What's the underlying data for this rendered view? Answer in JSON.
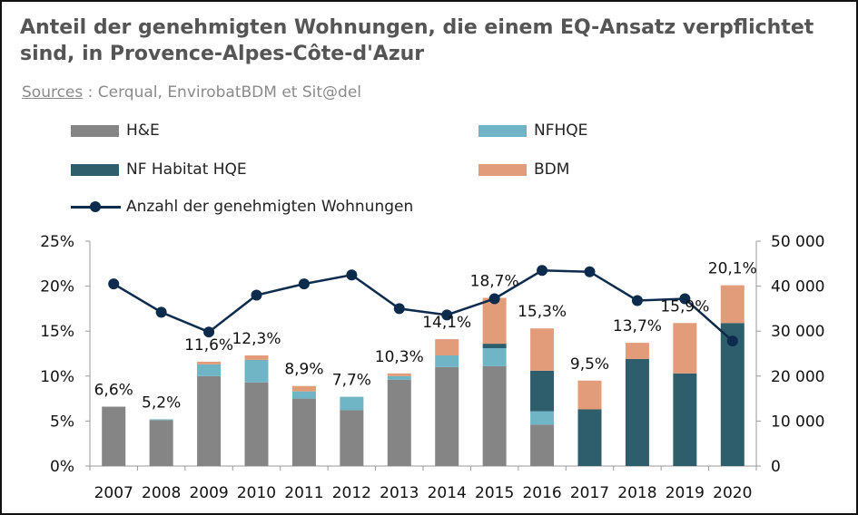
{
  "chart_data": {
    "type": "bar",
    "title": "Anteil der genehmigten Wohnungen, die einem EQ-Ansatz verpflichtet sind, in Provence-Alpes-Côte-d'Azur",
    "source_label": "Sources",
    "source_text": " : Cerqual, EnvirobatBDM et Sit@del",
    "categories": [
      "2007",
      "2008",
      "2009",
      "2010",
      "2011",
      "2012",
      "2013",
      "2014",
      "2015",
      "2016",
      "2017",
      "2018",
      "2019",
      "2020"
    ],
    "stacked": true,
    "y_left": {
      "ylim": [
        0,
        25
      ],
      "ticks": [
        "0%",
        "5%",
        "10%",
        "15%",
        "20%",
        "25%"
      ],
      "tick_values": [
        0,
        5,
        10,
        15,
        20,
        25
      ]
    },
    "y_right": {
      "ylim": [
        0,
        50000
      ],
      "ticks": [
        "0",
        "10 000",
        "20 000",
        "30 000",
        "40 000",
        "50 000"
      ],
      "tick_values": [
        0,
        10000,
        20000,
        30000,
        40000,
        50000
      ]
    },
    "series": [
      {
        "name": "H&E",
        "color": "#858585",
        "values": [
          6.6,
          5.1,
          10.0,
          9.3,
          7.5,
          6.2,
          9.6,
          11.0,
          11.1,
          4.6,
          0,
          0,
          0,
          0
        ]
      },
      {
        "name": "NFHQE",
        "color": "#6fb5c6",
        "values": [
          0,
          0.1,
          1.3,
          2.5,
          0.8,
          1.5,
          0.4,
          1.3,
          2.0,
          1.5,
          0,
          0,
          0,
          0
        ]
      },
      {
        "name": "NF Habitat HQE",
        "color": "#2e5d6b",
        "values": [
          0,
          0,
          0,
          0,
          0,
          0,
          0,
          0,
          0.5,
          4.5,
          6.3,
          11.9,
          10.3,
          15.9
        ]
      },
      {
        "name": "BDM",
        "color": "#e39c7a",
        "values": [
          0,
          0,
          0.3,
          0.5,
          0.6,
          0,
          0.3,
          1.8,
          5.1,
          4.7,
          3.2,
          1.8,
          5.6,
          4.2
        ]
      }
    ],
    "totals_labels": [
      "6,6%",
      "5,2%",
      "11,6%",
      "12,3%",
      "8,9%",
      "7,7%",
      "10,3%",
      "14,1%",
      "18,7%",
      "15,3%",
      "9,5%",
      "13,7%",
      "15,9%",
      "20,1%"
    ],
    "line": {
      "name": "Anzahl der genehmigten Wohnungen",
      "color": "#0d2b4d",
      "axis": "right",
      "values": [
        40500,
        34200,
        29800,
        38000,
        40500,
        42500,
        35000,
        33600,
        37200,
        43500,
        43200,
        36800,
        37200,
        27800
      ]
    }
  }
}
